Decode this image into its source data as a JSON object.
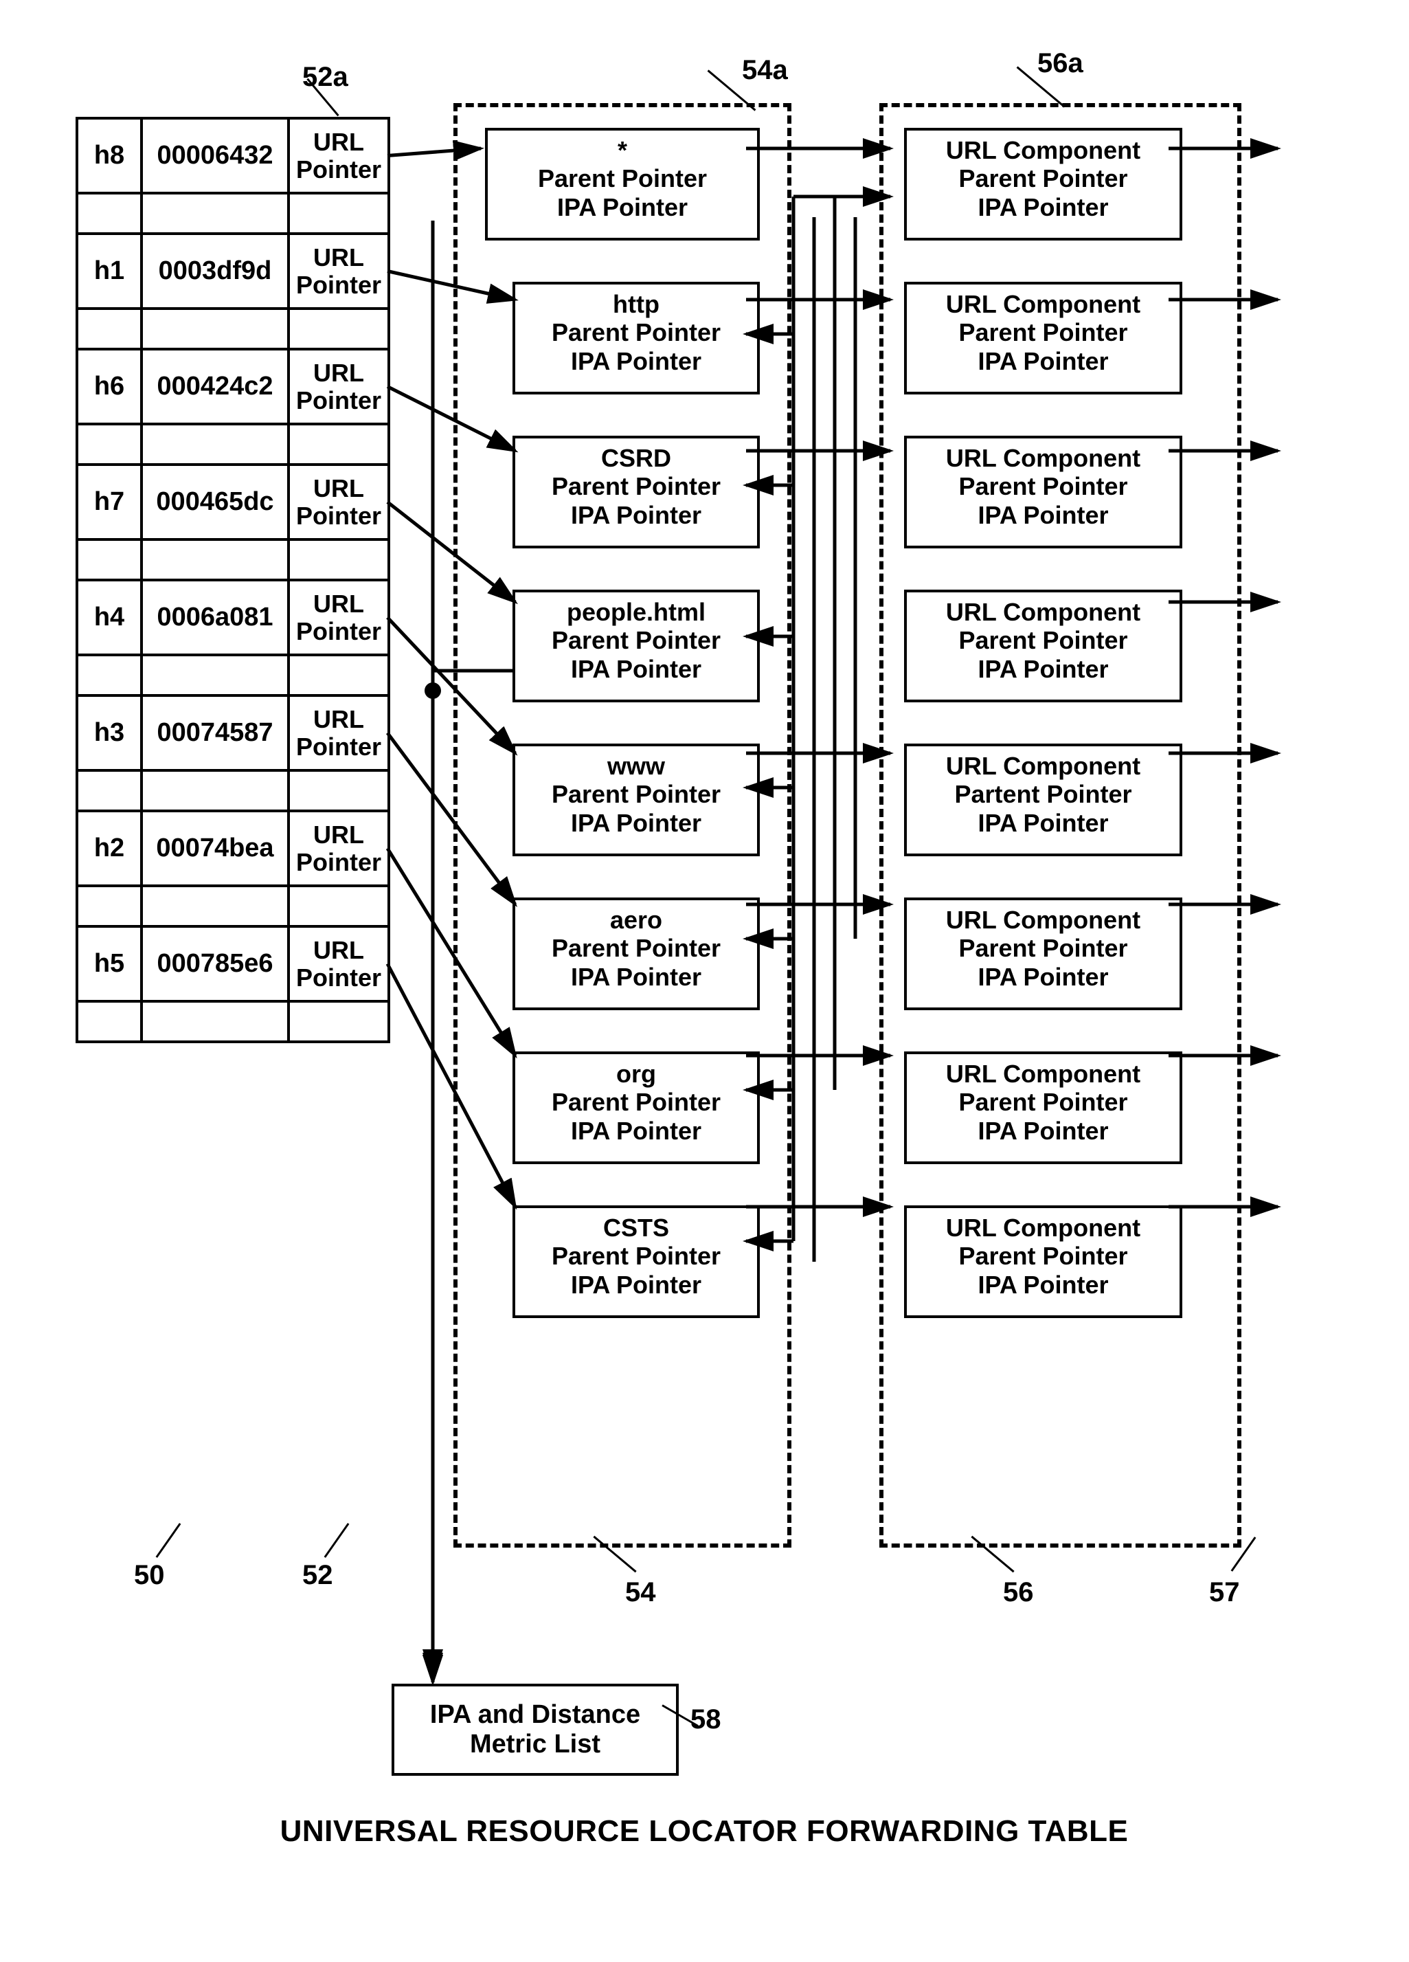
{
  "title": "UNIVERSAL RESOURCE LOCATOR FORWARDING TABLE",
  "labels": {
    "ref_52a": "52a",
    "ref_54a": "54a",
    "ref_56a": "56a",
    "ref_50": "50",
    "ref_52": "52",
    "ref_54": "54",
    "ref_56": "56",
    "ref_57": "57",
    "ref_58": "58"
  },
  "url_pointer_label": "URL Pointer",
  "hash_rows": [
    {
      "h": "h8",
      "v": "00006432"
    },
    {
      "h": "h1",
      "v": "0003df9d"
    },
    {
      "h": "h6",
      "v": "000424c2"
    },
    {
      "h": "h7",
      "v": "000465dc"
    },
    {
      "h": "h4",
      "v": "0006a081"
    },
    {
      "h": "h3",
      "v": "00074587"
    },
    {
      "h": "h2",
      "v": "00074bea"
    },
    {
      "h": "h5",
      "v": "000785e6"
    }
  ],
  "col54_items": [
    {
      "title": "*",
      "l2": "Parent Pointer",
      "l3": "IPA Pointer"
    },
    {
      "title": "http",
      "l2": "Parent Pointer",
      "l3": "IPA Pointer"
    },
    {
      "title": "CSRD",
      "l2": "Parent Pointer",
      "l3": "IPA Pointer"
    },
    {
      "title": "people.html",
      "l2": "Parent Pointer",
      "l3": "IPA Pointer"
    },
    {
      "title": "www",
      "l2": "Parent Pointer",
      "l3": "IPA Pointer"
    },
    {
      "title": "aero",
      "l2": "Parent Pointer",
      "l3": "IPA Pointer"
    },
    {
      "title": "org",
      "l2": "Parent Pointer",
      "l3": "IPA Pointer"
    },
    {
      "title": "CSTS",
      "l2": "Parent Pointer",
      "l3": "IPA Pointer"
    }
  ],
  "col56_items": [
    {
      "l1": "URL Component",
      "l2": "Parent Pointer",
      "l3": "IPA Pointer"
    },
    {
      "l1": "URL Component",
      "l2": "Parent Pointer",
      "l3": "IPA Pointer"
    },
    {
      "l1": "URL Component",
      "l2": "Parent Pointer",
      "l3": "IPA Pointer"
    },
    {
      "l1": "URL Component",
      "l2": "Parent Pointer",
      "l3": "IPA Pointer"
    },
    {
      "l1": "URL Component",
      "l2": "Partent Pointer",
      "l3": "IPA Pointer"
    },
    {
      "l1": "URL Component",
      "l2": "Parent Pointer",
      "l3": "IPA Pointer"
    },
    {
      "l1": "URL Component",
      "l2": "Parent Pointer",
      "l3": "IPA Pointer"
    },
    {
      "l1": "URL Component",
      "l2": "Parent Pointer",
      "l3": "IPA Pointer"
    }
  ],
  "ipa_box": "IPA and Distance Metric List",
  "style": {
    "stroke": "#000000",
    "stroke_width": 5,
    "arrow_size": 22
  }
}
